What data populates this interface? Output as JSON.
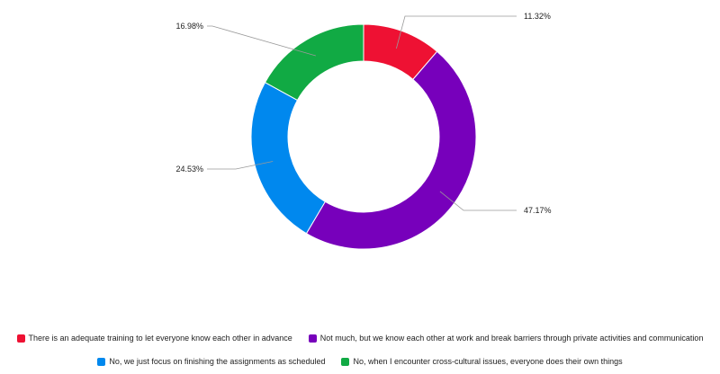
{
  "chart_data": {
    "type": "pie",
    "donut": true,
    "title": "",
    "legend_position": "bottom",
    "slices": [
      {
        "name": "There is an adequate training to let everyone know each other in advance",
        "value": 11.32,
        "label": "11.32%",
        "color": "#ee1133"
      },
      {
        "name": "Not much, but we know each other at work and break barriers through private activities and communication",
        "value": 47.17,
        "label": "47.17%",
        "color": "#7700bb"
      },
      {
        "name": "No, we just focus on finishing the assignments as scheduled",
        "value": 24.53,
        "label": "24.53%",
        "color": "#0088ee"
      },
      {
        "name": "No, when I encounter cross-cultural issues, everyone does their own things",
        "value": 16.98,
        "label": "16.98%",
        "color": "#11aa44"
      }
    ],
    "legend_rows": [
      [
        0,
        1
      ],
      [
        2,
        3
      ]
    ]
  }
}
